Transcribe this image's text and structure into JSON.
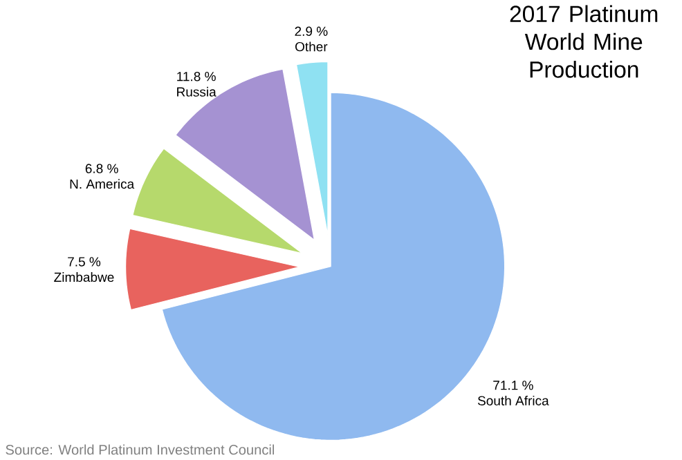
{
  "chart_data": {
    "type": "pie",
    "title": "2017 Platinum World Mine Production",
    "categories": [
      "South Africa",
      "Zimbabwe",
      "N. America",
      "Russia",
      "Other"
    ],
    "values": [
      71.1,
      7.5,
      6.8,
      11.8,
      2.9
    ],
    "value_labels": [
      "71.1 %",
      "7.5 %",
      "6.8 %",
      "11.8 %",
      "2.9 %"
    ],
    "colors": [
      "#8fb9ef",
      "#e8635e",
      "#b6d96c",
      "#a592d2",
      "#8fe1f2"
    ],
    "annotations": [
      "Source:  World Platinum Investment Council"
    ]
  }
}
